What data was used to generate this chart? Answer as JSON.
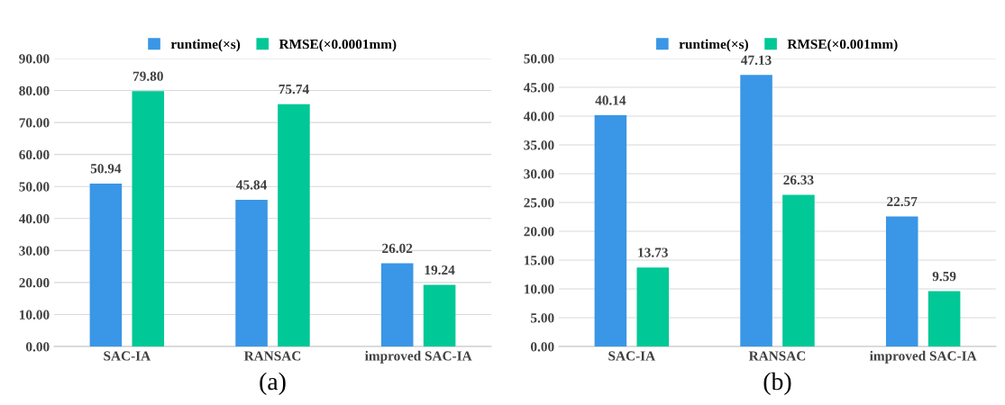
{
  "chart_data": [
    {
      "type": "bar",
      "categories": [
        "SAC-IA",
        "RANSAC",
        "improved SAC-IA"
      ],
      "series": [
        {
          "name": "runtime(×s)",
          "color": "#3a96e6",
          "values": [
            50.94,
            45.84,
            26.02
          ],
          "value_labels": [
            "50.94",
            "45.84",
            "26.02"
          ]
        },
        {
          "name": "RMSE(×0.0001mm)",
          "color": "#00c896",
          "values": [
            79.8,
            75.74,
            19.24
          ],
          "value_labels": [
            "79.80",
            "75.74",
            "19.24"
          ]
        }
      ],
      "ylim": [
        0,
        90
      ],
      "yticks": [
        {
          "value": 0,
          "label": "0.00"
        },
        {
          "value": 10,
          "label": "10.00"
        },
        {
          "value": 20,
          "label": "20.00"
        },
        {
          "value": 30,
          "label": "30.00"
        },
        {
          "value": 40,
          "label": "40.00"
        },
        {
          "value": 50,
          "label": "50.00"
        },
        {
          "value": 60,
          "label": "60.00"
        },
        {
          "value": 70,
          "label": "70.00"
        },
        {
          "value": 80,
          "label": "80.00"
        },
        {
          "value": 90,
          "label": "90.00"
        }
      ],
      "grid": "y",
      "legend": "top",
      "annotations": [
        "(a)"
      ]
    },
    {
      "type": "bar",
      "categories": [
        "SAC-IA",
        "RANSAC",
        "improved SAC-IA"
      ],
      "series": [
        {
          "name": "runtime(×s)",
          "color": "#3a96e6",
          "values": [
            40.14,
            47.13,
            22.57
          ],
          "value_labels": [
            "40.14",
            "47.13",
            "22.57"
          ]
        },
        {
          "name": "RMSE(×0.001mm)",
          "color": "#00c896",
          "values": [
            13.73,
            26.33,
            9.59
          ],
          "value_labels": [
            "13.73",
            "26.33",
            "9.59"
          ]
        }
      ],
      "ylim": [
        0,
        50
      ],
      "yticks": [
        {
          "value": 0,
          "label": "0.00"
        },
        {
          "value": 5,
          "label": "5.00"
        },
        {
          "value": 10,
          "label": "10.00"
        },
        {
          "value": 15,
          "label": "15.00"
        },
        {
          "value": 20,
          "label": "20.00"
        },
        {
          "value": 25,
          "label": "25.00"
        },
        {
          "value": 30,
          "label": "30.00"
        },
        {
          "value": 35,
          "label": "35.00"
        },
        {
          "value": 40,
          "label": "40.00"
        },
        {
          "value": 45,
          "label": "45.00"
        },
        {
          "value": 50,
          "label": "50.00"
        }
      ],
      "grid": "y",
      "legend": "top",
      "annotations": [
        "(b)"
      ]
    }
  ]
}
